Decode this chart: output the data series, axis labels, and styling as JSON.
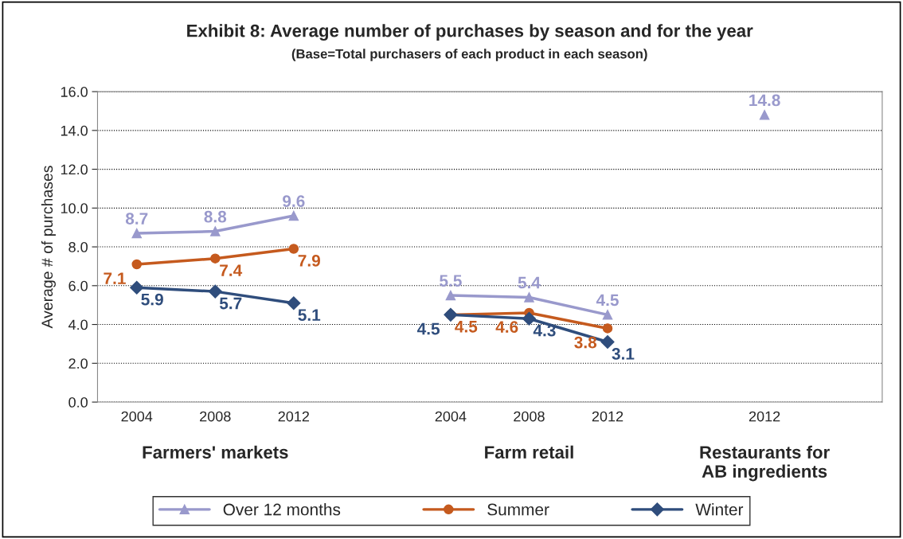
{
  "chart_data": {
    "type": "line",
    "title": "Exhibit 8: Average number of purchases by season and for the year",
    "subtitle": "(Base=Total purchasers of each product in each season)",
    "ylabel": "Average # of purchases",
    "categories": [
      "2004",
      "2008",
      "2012",
      null,
      "2004",
      "2008",
      "2012",
      null,
      "2012",
      null
    ],
    "series": [
      {
        "name": "Over 12 months",
        "color": "#9999cc",
        "marker": "triangle",
        "values": [
          8.7,
          8.8,
          9.6,
          null,
          5.5,
          5.4,
          4.5,
          null,
          14.8,
          null
        ]
      },
      {
        "name": "Summer",
        "color": "#c55a1e",
        "marker": "circle",
        "values": [
          7.1,
          7.4,
          7.9,
          null,
          4.5,
          4.6,
          3.8,
          null,
          null,
          null
        ]
      },
      {
        "name": "Winter",
        "color": "#2f4d7c",
        "marker": "diamond",
        "values": [
          5.9,
          5.7,
          5.1,
          null,
          4.5,
          4.3,
          3.1,
          null,
          null,
          null
        ]
      }
    ],
    "ylim": [
      0,
      16
    ],
    "yticks": [
      {
        "value": 0,
        "label": "0.0"
      },
      {
        "value": 2,
        "label": "2.0"
      },
      {
        "value": 4,
        "label": "4.0"
      },
      {
        "value": 6,
        "label": "6.0"
      },
      {
        "value": 8,
        "label": "8.0"
      },
      {
        "value": 10,
        "label": "10.0"
      },
      {
        "value": 12,
        "label": "12.0"
      },
      {
        "value": 14,
        "label": "14.0"
      },
      {
        "value": 16,
        "label": "16.0"
      }
    ],
    "annotations": [
      "Farmers' markets",
      "Farm retail",
      "Restaurants for\nAB ingredients"
    ],
    "grid": "y",
    "legend": "bottom",
    "data_labels": true
  }
}
